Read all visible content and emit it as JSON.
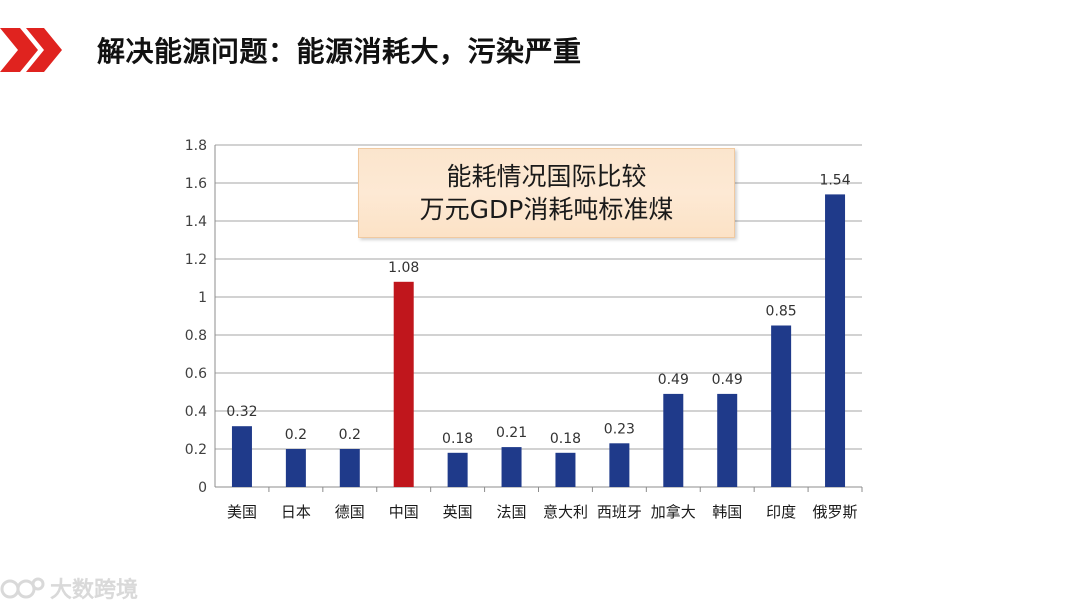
{
  "header": {
    "title": "解决能源问题：能源消耗大，污染严重",
    "accent_color": "#e0231f"
  },
  "watermark": {
    "text": "大数跨境",
    "icon": "brand-logo-icon"
  },
  "chart_data": {
    "type": "bar",
    "title_lines": [
      "能耗情况国际比较",
      "万元GDP消耗吨标准煤"
    ],
    "categories": [
      "美国",
      "日本",
      "德国",
      "中国",
      "英国",
      "法国",
      "意大利",
      "西班牙",
      "加拿大",
      "韩国",
      "印度",
      "俄罗斯"
    ],
    "values": [
      0.32,
      0.2,
      0.2,
      1.08,
      0.18,
      0.21,
      0.18,
      0.23,
      0.49,
      0.49,
      0.85,
      1.54
    ],
    "value_labels": [
      "0.32",
      "0.2",
      "0.2",
      "1.08",
      "0.18",
      "0.21",
      "0.18",
      "0.23",
      "0.49",
      "0.49",
      "0.85",
      "1.54"
    ],
    "ylim": [
      0,
      1.8
    ],
    "yticks": [
      "0",
      "0.2",
      "0.4",
      "0.6",
      "0.8",
      "1",
      "1.2",
      "1.4",
      "1.6",
      "1.8"
    ],
    "grid": true,
    "bar_color": "#1f3a8a",
    "highlight_category": "中国",
    "highlight_color": "#c0161c",
    "xlabel": "",
    "ylabel": ""
  }
}
